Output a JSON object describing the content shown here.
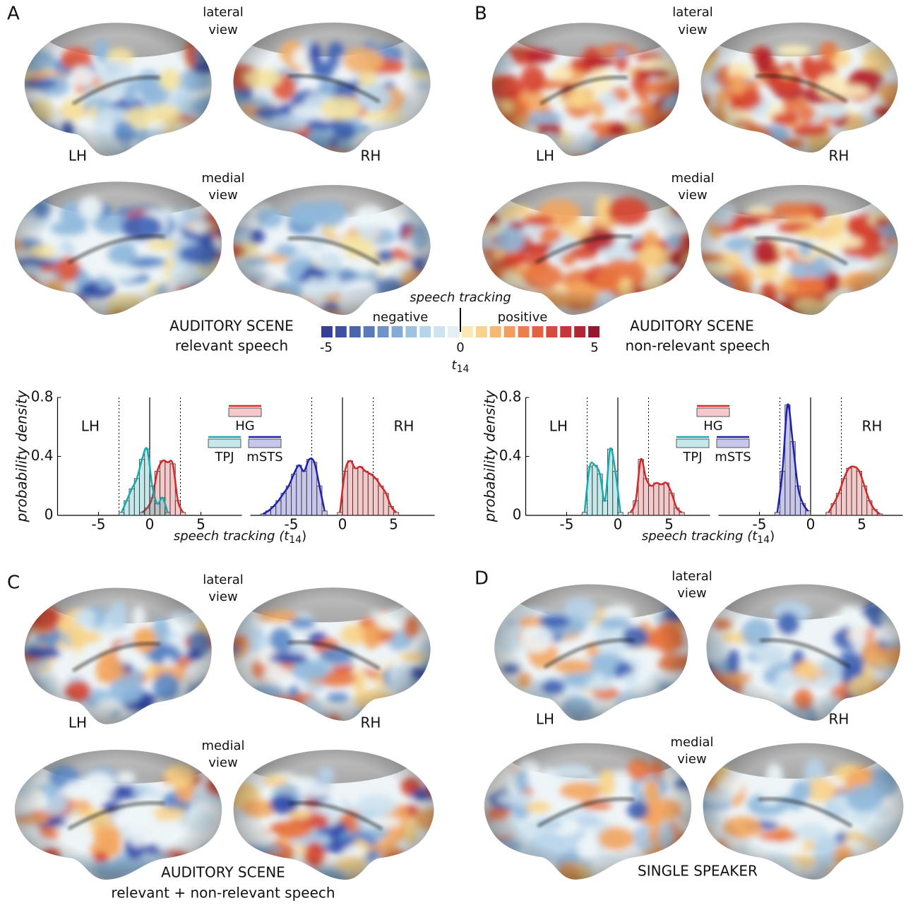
{
  "panels": [
    {
      "letter": "A",
      "lateral_view": [
        "lateral",
        "view"
      ],
      "medial_view": [
        "medial",
        "view"
      ],
      "hemispheres": [
        "LH",
        "RH"
      ],
      "caption": [
        "AUDITORY SCENE",
        "relevant speech"
      ]
    },
    {
      "letter": "B",
      "lateral_view": [
        "lateral",
        "view"
      ],
      "medial_view": [
        "medial",
        "view"
      ],
      "hemispheres": [
        "LH",
        "RH"
      ],
      "caption": [
        "AUDITORY SCENE",
        "non-relevant speech"
      ]
    },
    {
      "letter": "C",
      "lateral_view": [
        "lateral",
        "view"
      ],
      "medial_view": [
        "medial",
        "view"
      ],
      "hemispheres": [
        "LH",
        "RH"
      ],
      "caption": [
        "AUDITORY SCENE",
        "relevant + non-relevant speech"
      ]
    },
    {
      "letter": "D",
      "lateral_view": [
        "lateral",
        "view"
      ],
      "medial_view": [
        "medial",
        "view"
      ],
      "hemispheres": [
        "LH",
        "RH"
      ],
      "caption": [
        "SINGLE SPEAKER"
      ]
    }
  ],
  "colorbar": {
    "title": "speech tracking",
    "negative": "negative",
    "positive": "positive",
    "lim": [
      -5,
      5
    ],
    "ticks": [
      -5,
      0,
      5
    ],
    "label": [
      "t",
      "14"
    ],
    "colors": [
      "#353f98",
      "#3f4fa3",
      "#4b64ae",
      "#5a7bbb",
      "#6d93c8",
      "#84abd5",
      "#9cc1e1",
      "#b5d5ea",
      "#cde4f0",
      "#e3eff3",
      "#fbe8b5",
      "#f9d28e",
      "#f6b872",
      "#f29c5e",
      "#ec7e4e",
      "#e36444",
      "#d64b3d",
      "#c63638",
      "#b02633",
      "#96182e"
    ]
  },
  "chart_data": [
    {
      "type": "histogram",
      "ylabel": "probability density",
      "xlabel": [
        "speech tracking (",
        "t",
        "14",
        ")"
      ],
      "hemispheres": [
        "LH",
        "RH"
      ],
      "xlim": [
        -9,
        9
      ],
      "xticks": [
        -5,
        0,
        5
      ],
      "ylim": [
        0,
        0.8
      ],
      "yticks": [
        0,
        0.4,
        0.8
      ],
      "zero_line": 0,
      "thresholds": [
        -3,
        3
      ],
      "series": [
        {
          "name": "HG",
          "color": "#d62728",
          "lh": {
            "bins": [
              -1,
              -0.5,
              0,
              0.5,
              1,
              1.5,
              2,
              2.5,
              3,
              3.5
            ],
            "values": [
              0.02,
              0.05,
              0.12,
              0.3,
              0.37,
              0.36,
              0.35,
              0.1,
              0.02
            ]
          },
          "rh": {
            "bins": [
              -0.5,
              0,
              0.5,
              1,
              1.5,
              2,
              2.5,
              3,
              3.5,
              4,
              4.5,
              5,
              5.5
            ],
            "values": [
              0.02,
              0.3,
              0.37,
              0.32,
              0.33,
              0.3,
              0.28,
              0.25,
              0.2,
              0.15,
              0.06,
              0.02
            ]
          }
        },
        {
          "name": "TPJ",
          "color": "#17a9b0",
          "lh": {
            "bins": [
              -3,
              -2.5,
              -2,
              -1.5,
              -1,
              -0.5,
              0,
              0.5,
              1,
              1.5,
              2
            ],
            "values": [
              0.02,
              0.1,
              0.18,
              0.25,
              0.38,
              0.45,
              0.2,
              0.08,
              0.12,
              0.02
            ]
          }
        },
        {
          "name": "mSTS",
          "color": "#1f1fb0",
          "rh": {
            "bins": [
              -8,
              -7.5,
              -7,
              -6.5,
              -6,
              -5.5,
              -5,
              -4.5,
              -4,
              -3.5,
              -3,
              -2.5,
              -2,
              -1.5
            ],
            "values": [
              0.01,
              0.03,
              0.06,
              0.1,
              0.15,
              0.2,
              0.28,
              0.34,
              0.3,
              0.38,
              0.36,
              0.2,
              0.03
            ]
          }
        }
      ]
    },
    {
      "type": "histogram",
      "ylabel": "probability density",
      "xlabel": [
        "speech tracking (",
        "t",
        "14",
        ")"
      ],
      "hemispheres": [
        "LH",
        "RH"
      ],
      "xlim": [
        -9,
        9
      ],
      "xticks": [
        -5,
        0,
        5
      ],
      "ylim": [
        0,
        0.8
      ],
      "yticks": [
        0,
        0.4,
        0.8
      ],
      "zero_line": 0,
      "thresholds": [
        -3,
        3
      ],
      "series": [
        {
          "name": "HG",
          "color": "#d62728",
          "lh": {
            "bins": [
              1,
              1.5,
              2,
              2.5,
              3,
              3.5,
              4,
              4.5,
              5,
              5.5,
              6,
              6.5
            ],
            "values": [
              0.02,
              0.1,
              0.38,
              0.25,
              0.2,
              0.22,
              0.21,
              0.22,
              0.15,
              0.05,
              0.02
            ]
          },
          "rh": {
            "bins": [
              1.5,
              2,
              2.5,
              3,
              3.5,
              4,
              4.5,
              5,
              5.5,
              6,
              6.5,
              7
            ],
            "values": [
              0.02,
              0.08,
              0.15,
              0.25,
              0.32,
              0.33,
              0.3,
              0.2,
              0.1,
              0.04,
              0.01
            ]
          }
        },
        {
          "name": "TPJ",
          "color": "#17a9b0",
          "lh": {
            "bins": [
              -3.5,
              -3,
              -2.5,
              -2,
              -1.5,
              -1,
              -0.5,
              0,
              0.5
            ],
            "values": [
              0.02,
              0.33,
              0.34,
              0.28,
              0.1,
              0.45,
              0.3,
              0.02
            ]
          }
        },
        {
          "name": "mSTS",
          "color": "#1f1fb0",
          "rh": {
            "bins": [
              -3.5,
              -3,
              -2.5,
              -2,
              -1.5,
              -1,
              -0.5,
              0
            ],
            "values": [
              0.02,
              0.3,
              0.75,
              0.5,
              0.2,
              0.08,
              0.03
            ]
          }
        }
      ]
    }
  ]
}
